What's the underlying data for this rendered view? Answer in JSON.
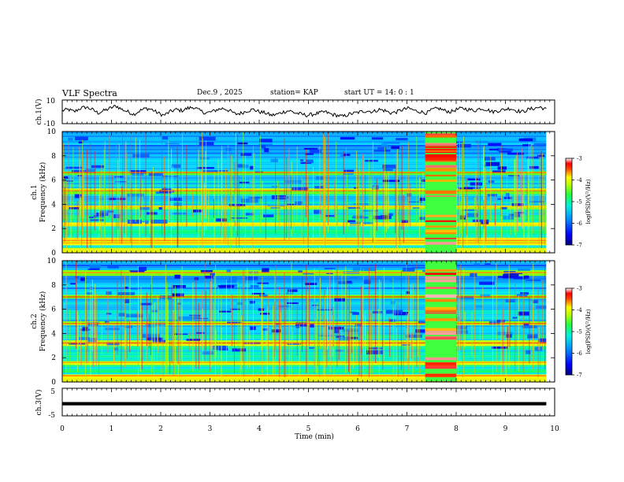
{
  "header": {
    "title": "VLF Spectra",
    "date": "Dec.9 , 2025",
    "station": "station= KAP",
    "start": "start UT =  14: 0 : 1"
  },
  "chart_data": [
    {
      "type": "line",
      "id": "ch1-waveform",
      "ylabel": "ch.1(V)",
      "ylim": [
        -10,
        10
      ],
      "yticks": [
        "10",
        "-10"
      ],
      "x_range_min": [
        0,
        9.83
      ],
      "approx_values_v": [
        1,
        2,
        0,
        3,
        4,
        2,
        -1,
        1,
        3,
        5,
        2,
        0,
        -2,
        1,
        3,
        2,
        -1,
        -3,
        0,
        2,
        1,
        3,
        4,
        1,
        -1,
        0,
        2,
        3,
        1,
        -2,
        -1,
        1,
        2,
        0,
        -1,
        -3,
        -2,
        0,
        1,
        -1,
        -2,
        -3,
        -2,
        -1,
        0,
        -2,
        -3,
        -4,
        -2,
        -1,
        0,
        1,
        0,
        2,
        1,
        -1,
        0,
        2,
        3,
        1,
        0,
        -1,
        2,
        3,
        1,
        0,
        2,
        3,
        2,
        1,
        3,
        2,
        0,
        1,
        2,
        3,
        1,
        0,
        2,
        3,
        4,
        2
      ],
      "color": "#000000"
    },
    {
      "type": "heatmap",
      "id": "ch1-spectrogram",
      "ylabel": "ch.1\nFrequency (kHz)",
      "ylim": [
        0,
        10
      ],
      "yticks": [
        "0",
        "2",
        "4",
        "6",
        "8",
        "10"
      ],
      "xlim_min": [
        0,
        10
      ],
      "data_end_min": 9.83,
      "burst_interval_min": [
        7.37,
        8.0
      ],
      "strong_bands_khz": [
        0.8,
        1.0,
        2.3,
        3.8,
        5.1,
        6.6
      ],
      "colorbar": {
        "label": "log(PSD)(V²/Hz)",
        "range": [
          -7,
          -3
        ],
        "ticks": [
          "-3",
          "-4",
          "-5",
          "-6",
          "-7"
        ]
      }
    },
    {
      "type": "heatmap",
      "id": "ch2-spectrogram",
      "ylabel": "ch.2\nFrequency (kHz)",
      "ylim": [
        0,
        10
      ],
      "yticks": [
        "0",
        "2",
        "4",
        "6",
        "8",
        "10"
      ],
      "xlim_min": [
        0,
        10
      ],
      "data_end_min": 9.83,
      "burst_interval_min": [
        7.37,
        8.0
      ],
      "strong_bands_khz": [
        0.5,
        1.6,
        3.2,
        4.8,
        7.0,
        9.0
      ],
      "colorbar": {
        "label": "log(PSD)(V²/Hz)",
        "range": [
          -7,
          -3
        ],
        "ticks": [
          "-3",
          "-4",
          "-5",
          "-6",
          "-7"
        ]
      }
    },
    {
      "type": "line",
      "id": "ch3-waveform",
      "ylabel": "ch.3(V)",
      "ylim": [
        -5,
        5
      ],
      "yticks": [
        "5",
        "-5"
      ],
      "x_range_min": [
        0,
        9.83
      ],
      "value_v": [
        -1.2,
        0.0
      ],
      "color": "#000000"
    }
  ],
  "xaxis": {
    "label": "Time (min)",
    "range": [
      0,
      10
    ],
    "ticks": [
      "0",
      "1",
      "2",
      "3",
      "4",
      "5",
      "6",
      "7",
      "8",
      "9",
      "10"
    ]
  },
  "colormap": [
    "#000080",
    "#0000ff",
    "#0080ff",
    "#00e0ff",
    "#00ff80",
    "#80ff00",
    "#ffff00",
    "#ffa000",
    "#ff0000",
    "#ffffff"
  ]
}
